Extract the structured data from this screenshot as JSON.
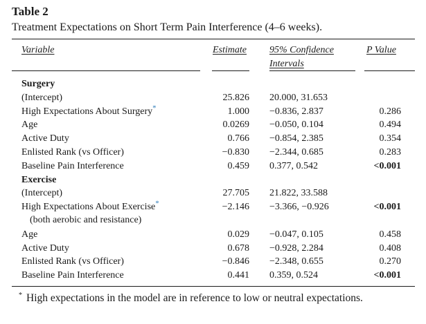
{
  "table_label": "Table 2",
  "caption": "Treatment Expectations on Short Term Pain Interference (4–6 weeks).",
  "headers": {
    "variable": "Variable",
    "estimate": "Estimate",
    "ci_line1": "95% Confidence",
    "ci_line2": "Intervals",
    "p": "P Value"
  },
  "sections": [
    {
      "title": "Surgery",
      "rows": [
        {
          "variable": "(Intercept)",
          "estimate": "25.826",
          "ci": "20.000, 31.653",
          "p": "",
          "starred": false,
          "p_bold": false
        },
        {
          "variable": "High Expectations About Surgery",
          "estimate": "1.000",
          "ci": "−0.836, 2.837",
          "p": "0.286",
          "starred": true,
          "p_bold": false
        },
        {
          "variable": "Age",
          "estimate": "0.0269",
          "ci": "−0.050, 0.104",
          "p": "0.494",
          "starred": false,
          "p_bold": false
        },
        {
          "variable": "Active Duty",
          "estimate": "0.766",
          "ci": "−0.854, 2.385",
          "p": "0.354",
          "starred": false,
          "p_bold": false
        },
        {
          "variable": "Enlisted Rank (vs Officer)",
          "estimate": "−0.830",
          "ci": "−2.344, 0.685",
          "p": "0.283",
          "starred": false,
          "p_bold": false
        },
        {
          "variable": "Baseline Pain Interference",
          "estimate": "0.459",
          "ci": "0.377, 0.542",
          "p": "<0.001",
          "starred": false,
          "p_bold": true
        }
      ]
    },
    {
      "title": "Exercise",
      "rows": [
        {
          "variable": "(Intercept)",
          "estimate": "27.705",
          "ci": "21.822, 33.588",
          "p": "",
          "starred": false,
          "p_bold": false
        },
        {
          "variable": "High Expectations About Exercise",
          "variable_line2": "(both aerobic and resistance)",
          "estimate": "−2.146",
          "ci": "−3.366, −0.926",
          "p": "<0.001",
          "starred": true,
          "p_bold": true
        },
        {
          "variable": "Age",
          "estimate": "0.029",
          "ci": "−0.047, 0.105",
          "p": "0.458",
          "starred": false,
          "p_bold": false
        },
        {
          "variable": "Active Duty",
          "estimate": "0.678",
          "ci": "−0.928, 2.284",
          "p": "0.408",
          "starred": false,
          "p_bold": false
        },
        {
          "variable": "Enlisted Rank (vs Officer)",
          "estimate": "−0.846",
          "ci": "−2.348, 0.655",
          "p": "0.270",
          "starred": false,
          "p_bold": false
        },
        {
          "variable": "Baseline Pain Interference",
          "estimate": "0.441",
          "ci": "0.359, 0.524",
          "p": "<0.001",
          "starred": false,
          "p_bold": true
        }
      ]
    }
  ],
  "star_marker": "*",
  "footnote": {
    "marker": "*",
    "text": "High expectations in the model are in reference to low or neutral expectations."
  },
  "colors": {
    "text": "#1a1a1a",
    "star": "#2a7ab8"
  }
}
